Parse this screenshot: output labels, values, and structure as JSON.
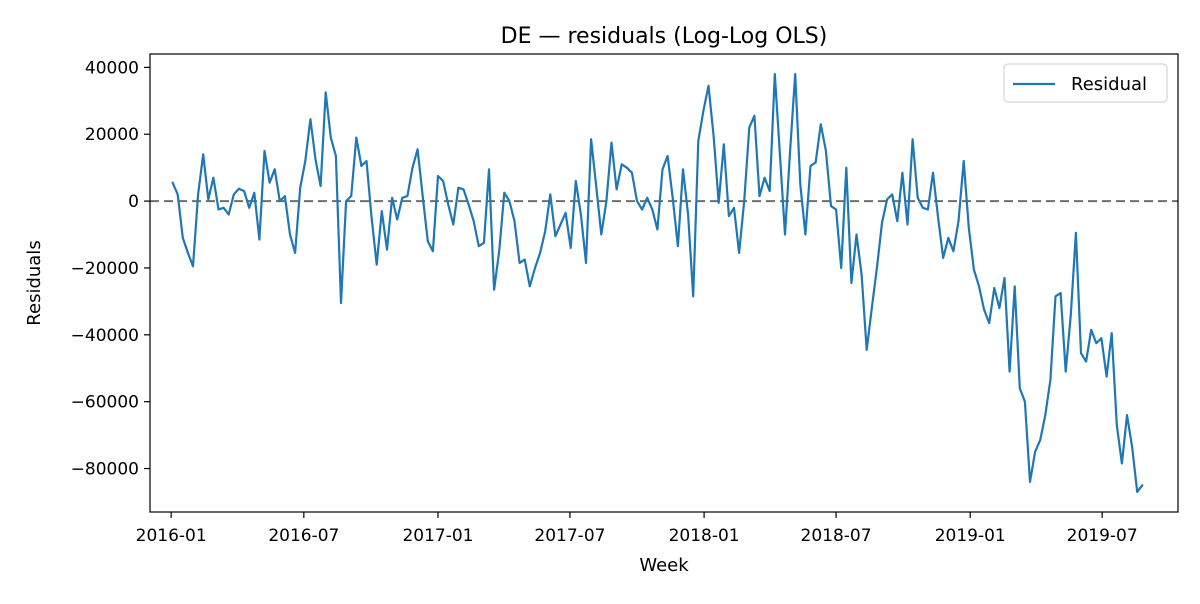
{
  "chart_data": {
    "type": "line",
    "title": "DE — residuals (Log-Log OLS)",
    "xlabel": "Week",
    "ylabel": "Residuals",
    "grid": false,
    "legend": {
      "placement": "top-right",
      "entries": [
        "Residual"
      ]
    },
    "colors": {
      "series": "#1f77b4",
      "reference_line": "#555555"
    },
    "reference_line": {
      "y": 0,
      "style": "dashed"
    },
    "xlim": [
      "2015-12-03",
      "2019-10-13"
    ],
    "ylim": [
      -93000,
      44000
    ],
    "xticks": [
      {
        "date": "2016-01-01",
        "label": "2016-01"
      },
      {
        "date": "2016-07-01",
        "label": "2016-07"
      },
      {
        "date": "2017-01-01",
        "label": "2017-01"
      },
      {
        "date": "2017-07-01",
        "label": "2017-07"
      },
      {
        "date": "2018-01-01",
        "label": "2018-01"
      },
      {
        "date": "2018-07-01",
        "label": "2018-07"
      },
      {
        "date": "2019-01-01",
        "label": "2019-01"
      },
      {
        "date": "2019-07-01",
        "label": "2019-07"
      }
    ],
    "yticks": [
      {
        "value": 40000,
        "label": "40000"
      },
      {
        "value": 20000,
        "label": "20000"
      },
      {
        "value": 0,
        "label": "0"
      },
      {
        "value": -20000,
        "label": "−20000"
      },
      {
        "value": -40000,
        "label": "−40000"
      },
      {
        "value": -60000,
        "label": "−60000"
      },
      {
        "value": -80000,
        "label": "−80000"
      }
    ],
    "series": [
      {
        "name": "Residual",
        "x_start": "2016-01-03",
        "x_step_days": 7,
        "values": [
          5500,
          2000,
          -11000,
          -15500,
          -19500,
          2000,
          14000,
          500,
          7000,
          -2500,
          -2000,
          -4000,
          2000,
          3700,
          3000,
          -2000,
          2500,
          -11500,
          15000,
          5500,
          9500,
          0,
          1500,
          -10000,
          -15500,
          4000,
          12000,
          24500,
          12500,
          4500,
          32500,
          19000,
          13500,
          -30500,
          0,
          1500,
          19000,
          10500,
          12000,
          -5000,
          -19000,
          -3000,
          -14500,
          1000,
          -5500,
          1000,
          1500,
          10000,
          15500,
          1500,
          -12000,
          -15000,
          7500,
          6000,
          -1000,
          -7000,
          4000,
          3500,
          -1000,
          -6000,
          -13500,
          -12500,
          9500,
          -26500,
          -15000,
          2500,
          0,
          -6000,
          -18500,
          -17500,
          -25500,
          -20000,
          -15500,
          -9000,
          2000,
          -10500,
          -7000,
          -3500,
          -14000,
          6000,
          -4000,
          -18500,
          18500,
          4500,
          -10000,
          0,
          17500,
          3500,
          11000,
          10000,
          8500,
          0,
          -2500,
          1000,
          -2500,
          -8500,
          9500,
          13500,
          1000,
          -13500,
          9500,
          -4000,
          -28500,
          18000,
          27000,
          34500,
          19500,
          -500,
          17000,
          -4500,
          -2000,
          -15500,
          0,
          22000,
          25500,
          1500,
          7000,
          3000,
          38000,
          14000,
          -10000,
          15000,
          38000,
          5000,
          -10000,
          10500,
          11500,
          23000,
          15000,
          -1500,
          -2500,
          -20000,
          10000,
          -24500,
          -10000,
          -22000,
          -44500,
          -32000,
          -20000,
          -6500,
          500,
          2000,
          -6000,
          8500,
          -7000,
          18500,
          1000,
          -2000,
          -2500,
          8500,
          -5000,
          -17000,
          -11000,
          -15000,
          -6000,
          12000,
          -8000,
          -20500,
          -25500,
          -32500,
          -36500,
          -26000,
          -32000,
          -23000,
          -51000,
          -25500,
          -56000,
          -60000,
          -84000,
          -75000,
          -71500,
          -64000,
          -53500,
          -28500,
          -27500,
          -51000,
          -34000,
          -9500,
          -45500,
          -48000,
          -38500,
          -42500,
          -41000,
          -52500,
          -39500,
          -67000,
          -78500,
          -64000,
          -73500,
          -87000,
          -85000
        ]
      }
    ]
  }
}
